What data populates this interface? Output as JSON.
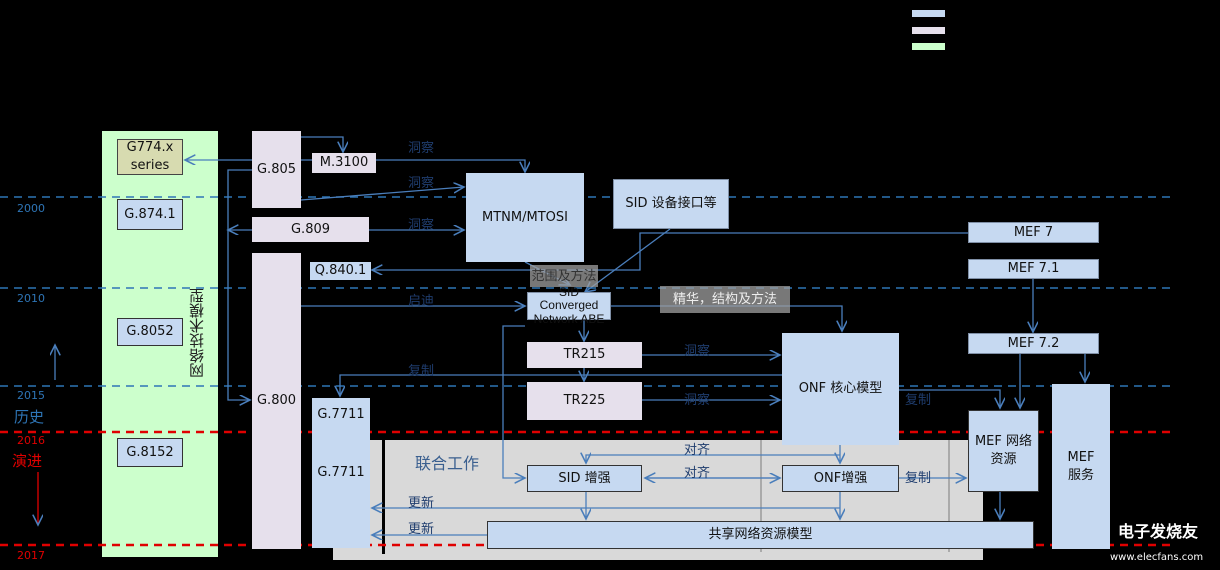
{
  "colors": {
    "blue": "#c6d9f1",
    "lavender": "#e6e0ec",
    "green": "#ccffcc",
    "olive": "#d7dbb0",
    "timeline_blue": "#2e75b6",
    "timeline_red": "#e00000",
    "arrow": "#4a7ebb",
    "joint_area": "#d9d9d9"
  },
  "legend": [
    "#c6d9f1",
    "#e6e0ec",
    "#ccffcc"
  ],
  "years": {
    "y2000": "2000",
    "y2010": "2010",
    "y2015": "2015",
    "y2016": "2016",
    "y2017": "2017"
  },
  "history": "历史",
  "evolution": "演进",
  "green_column": "网络技术模型",
  "boxes": {
    "g774": "G774.x series",
    "g8741": "G.874.1",
    "g8052": "G.8052",
    "g8152": "G.8152",
    "g805": "G.805",
    "m3100": "M.3100",
    "g809": "G.809",
    "g800": "G.800",
    "q8401": "Q.840.1",
    "mtnm": "MTNM/MTOSI",
    "sid_device": "SID 设备接口等",
    "sid_abe": "SID Converged Network ABE",
    "tr215": "TR215",
    "tr225": "TR225",
    "onf_core": "ONF 核心模型",
    "mef7": "MEF 7",
    "mef71": "MEF 7.1",
    "mef72": "MEF 7.2",
    "g7711a": "G.7711",
    "g7711b": "G.7711",
    "sid_enh": "SID 增强",
    "onf_enh": "ONF增强",
    "mef_res": "MEF 网络资源",
    "mef_svc": "MEF 服务",
    "shared": "共享网络资源模型"
  },
  "labels": {
    "insight1": "洞察",
    "insight2": "洞察",
    "insight3": "洞察",
    "insight4": "洞察",
    "insight5": "洞察",
    "scope": "范围及方法",
    "essence": "精华，结构及方法",
    "inspire": "启迪",
    "copy1": "复制",
    "copy2": "复制",
    "copy3": "复制",
    "align1": "对齐",
    "align2": "对齐",
    "update1": "更新",
    "update2": "更新",
    "joint": "联合工作"
  },
  "watermark": {
    "name": "电子发烧友",
    "url": "www.elecfans.com"
  }
}
